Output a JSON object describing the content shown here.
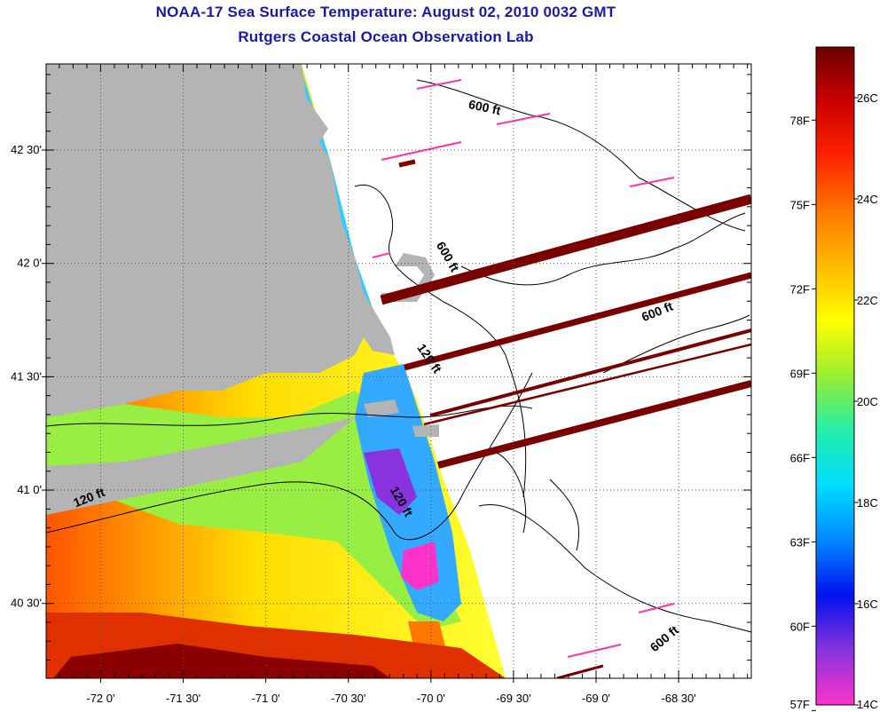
{
  "chart_data": {
    "type": "heatmap",
    "title": "NOAA-17 Sea Surface Temperature:  August 02, 2010 0032 GMT",
    "subtitle": "Rutgers Coastal Ocean Observation Lab",
    "x_ticks": [
      {
        "lon": -72.0,
        "label": "-72 0'"
      },
      {
        "lon": -71.5,
        "label": "-71 30'"
      },
      {
        "lon": -71.0,
        "label": "-71 0'"
      },
      {
        "lon": -70.5,
        "label": "-70 30'"
      },
      {
        "lon": -70.0,
        "label": "-70 0'"
      },
      {
        "lon": -69.5,
        "label": "-69 30'"
      },
      {
        "lon": -69.0,
        "label": "-69 0'"
      },
      {
        "lon": -68.5,
        "label": "-68 30'"
      }
    ],
    "y_ticks": [
      {
        "lat": 42.5,
        "label": "42 30'"
      },
      {
        "lat": 42.0,
        "label": "42 0'"
      },
      {
        "lat": 41.5,
        "label": "41 30'"
      },
      {
        "lat": 41.0,
        "label": "41 0'"
      },
      {
        "lat": 40.5,
        "label": "40 30'"
      }
    ],
    "xlim": [
      -72.33,
      -68.06
    ],
    "ylim": [
      40.17,
      42.88
    ],
    "grid": true,
    "colorbar": {
      "min_c": 14,
      "max_c": 27,
      "celsius_labels": [
        {
          "c": 26,
          "label": "26C"
        },
        {
          "c": 24,
          "label": "24C"
        },
        {
          "c": 22,
          "label": "22C"
        },
        {
          "c": 20,
          "label": "20C"
        },
        {
          "c": 18,
          "label": "18C"
        },
        {
          "c": 16,
          "label": "16C"
        },
        {
          "c": 14,
          "label": "14C"
        }
      ],
      "fahrenheit_labels": [
        {
          "f": 78,
          "label": "78F"
        },
        {
          "f": 75,
          "label": "75F"
        },
        {
          "f": 72,
          "label": "72F"
        },
        {
          "f": 69,
          "label": "69F"
        },
        {
          "f": 66,
          "label": "66F"
        },
        {
          "f": 63,
          "label": "63F"
        },
        {
          "f": 60,
          "label": "60F"
        },
        {
          "f": 57,
          "label": "57F"
        }
      ],
      "colors": [
        "#ff33cc",
        "#8833dd",
        "#0011ee",
        "#0088ff",
        "#00ddff",
        "#22eeaa",
        "#99ee33",
        "#ffff00",
        "#ffbb00",
        "#ff7700",
        "#ff2200",
        "#cc0000",
        "#6b0000"
      ]
    },
    "contour_labels": [
      {
        "text": "600 ft",
        "lon": -69.68,
        "lat": 42.67,
        "angle": 12
      },
      {
        "text": "600 ft",
        "lon": -69.92,
        "lat": 42.02,
        "angle": 60
      },
      {
        "text": "600 ft",
        "lon": -68.62,
        "lat": 41.77,
        "angle": -22
      },
      {
        "text": "600 ft",
        "lon": -68.57,
        "lat": 40.33,
        "angle": -40
      },
      {
        "text": "120 ft",
        "lon": -70.03,
        "lat": 41.57,
        "angle": 55
      },
      {
        "text": "120 ft",
        "lon": -72.06,
        "lat": 40.95,
        "angle": -22
      },
      {
        "text": "120 ft",
        "lon": -70.2,
        "lat": 40.94,
        "angle": 60
      }
    ],
    "colors": {
      "land": "#b4b4b4",
      "no_data": "#ffffff",
      "grid": "#555555",
      "frame": "#000000",
      "coast": "#000000",
      "title": "#1a1aa6"
    }
  }
}
